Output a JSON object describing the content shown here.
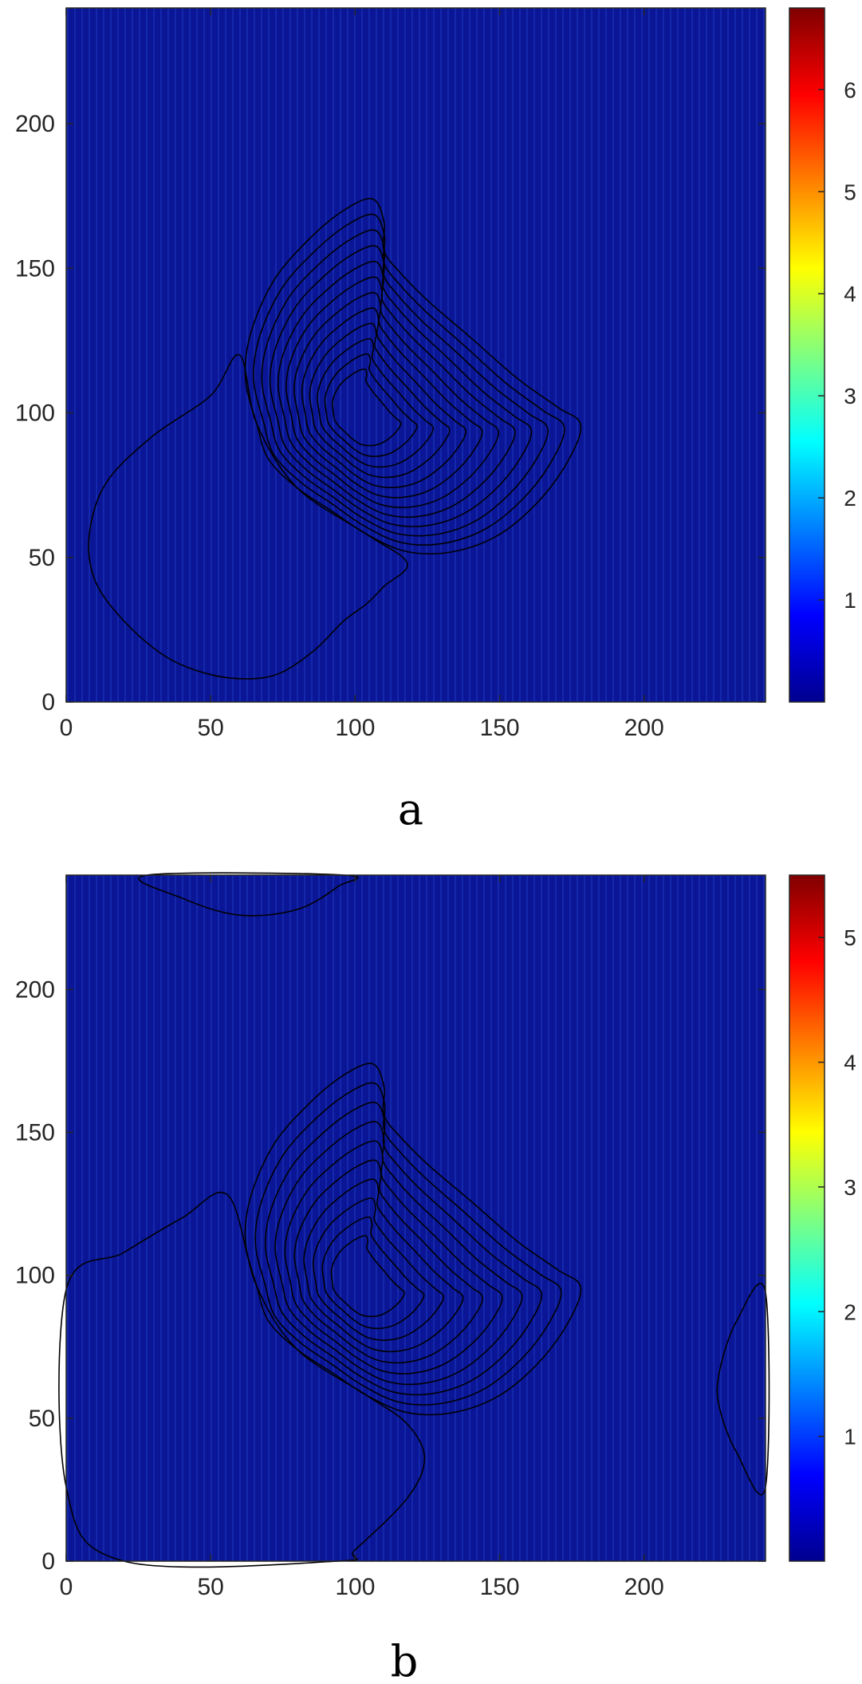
{
  "chart_data": [
    {
      "type": "contour",
      "panel_label": "a",
      "xlim": [
        0,
        242
      ],
      "ylim": [
        0,
        240
      ],
      "xticks": [
        "0",
        "50",
        "100",
        "150",
        "200"
      ],
      "yticks": [
        "0",
        "50",
        "100",
        "150",
        "200"
      ],
      "colorbar": {
        "range": [
          0,
          6.8
        ],
        "ticks": [
          "1",
          "2",
          "3",
          "4",
          "5",
          "6"
        ]
      },
      "peak": {
        "x": 95,
        "y": 100,
        "value": 6.8
      },
      "contour_levels": [
        0.5,
        1,
        1.5,
        2,
        2.5,
        3,
        3.5,
        4,
        4.5,
        5,
        5.5,
        6
      ]
    },
    {
      "type": "contour",
      "panel_label": "b",
      "xlim": [
        0,
        242
      ],
      "ylim": [
        0,
        240
      ],
      "xticks": [
        "0",
        "50",
        "100",
        "150",
        "200"
      ],
      "yticks": [
        "0",
        "50",
        "100",
        "150",
        "200"
      ],
      "colorbar": {
        "range": [
          0,
          5.5
        ],
        "ticks": [
          "1",
          "2",
          "3",
          "4",
          "5"
        ]
      },
      "peak": {
        "x": 95,
        "y": 97,
        "value": 5.5
      },
      "contour_levels": [
        0.5,
        1,
        1.5,
        2,
        2.5,
        3,
        3.5,
        4,
        4.5,
        5
      ]
    }
  ],
  "colormap": [
    "#00008f",
    "#0000ff",
    "#0080ff",
    "#00ffff",
    "#80ff80",
    "#ffff00",
    "#ff8000",
    "#ff0000",
    "#800000"
  ]
}
